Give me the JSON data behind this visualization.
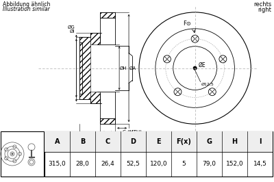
{
  "bg_color": "#ffffff",
  "table_headers": [
    "A",
    "B",
    "C",
    "D",
    "E",
    "F(x)",
    "G",
    "H",
    "I"
  ],
  "table_values": [
    "315,0",
    "28,0",
    "26,4",
    "52,5",
    "120,0",
    "5",
    "79,0",
    "152,0",
    "14,5"
  ],
  "note_top_left": [
    "Abbildung ähnlich",
    "Illustration similar"
  ],
  "note_top_right": [
    "rechts",
    "right"
  ],
  "lc": "#000000",
  "dc": "#aaaaaa",
  "hatch_lc": "#000000"
}
